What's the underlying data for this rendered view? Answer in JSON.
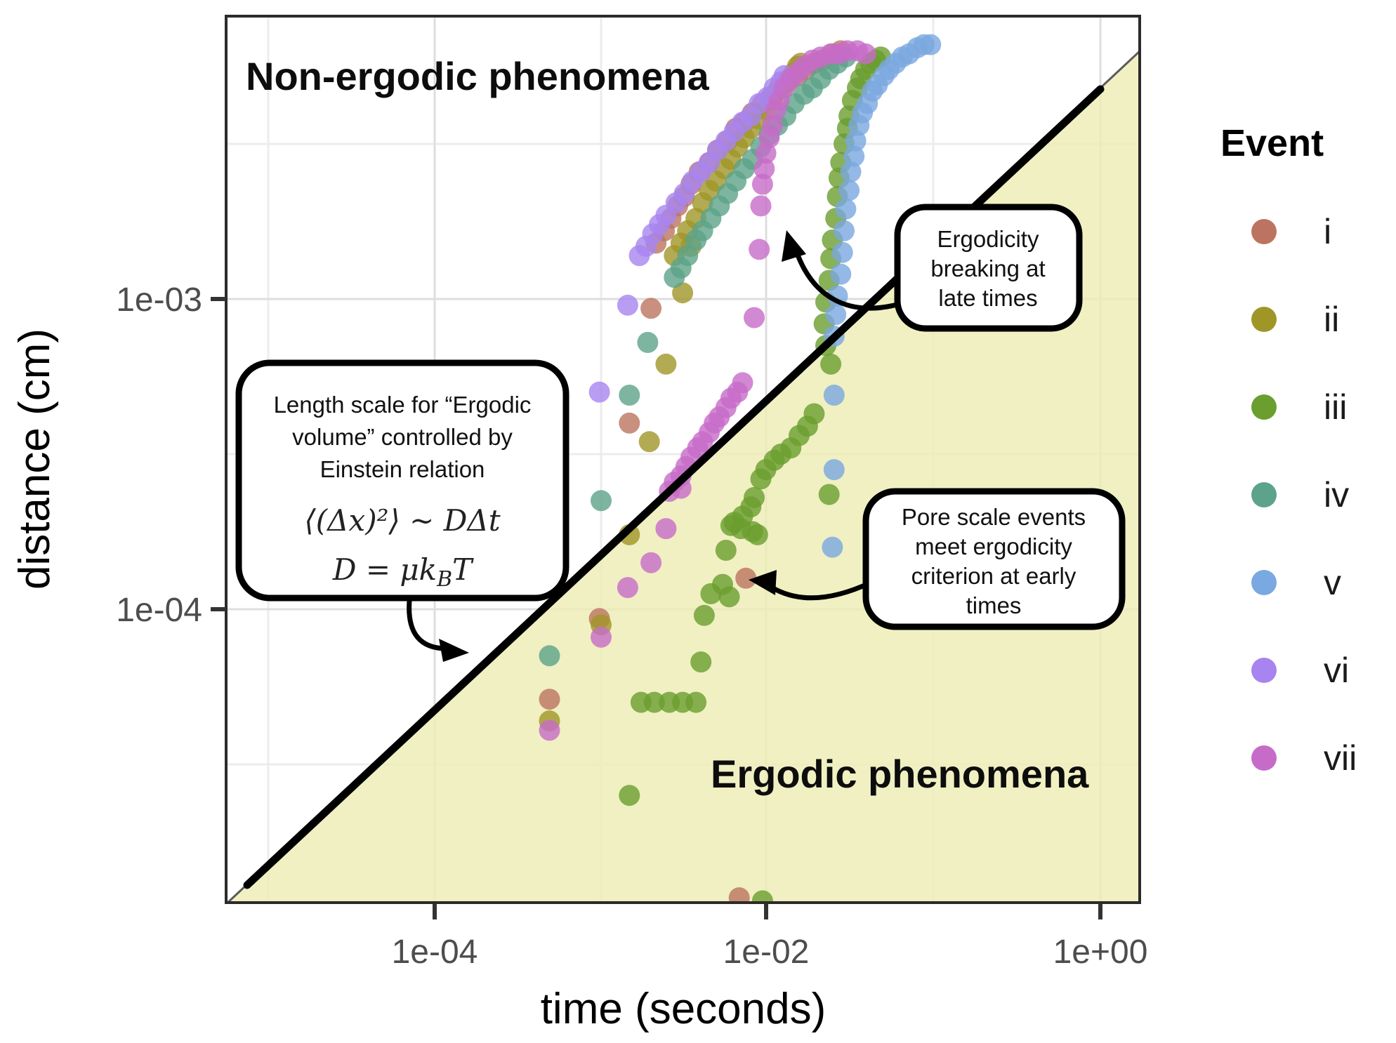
{
  "axes": {
    "x": {
      "label": "time (seconds)",
      "scale": "log10",
      "tick_labels": [
        "1e-04",
        "1e-02",
        "1e+00"
      ],
      "tick_values": [
        0.0001,
        0.01,
        1.0
      ],
      "range_log10": [
        -5.25,
        0.24
      ]
    },
    "y": {
      "label": "distance (cm)",
      "scale": "log10",
      "tick_labels": [
        "1e-03",
        "1e-04"
      ],
      "tick_values": [
        0.001,
        0.0001
      ],
      "range_log10": [
        -2.09,
        -4.95
      ]
    }
  },
  "regions": {
    "upper_label": "Non-ergodic phenomena",
    "lower_label": "Ergodic phenomena",
    "lower_fill": "#ededb4"
  },
  "legend": {
    "title": "Event"
  },
  "annotations": {
    "einstein_box": {
      "lines": [
        "Length scale for “Ergodic",
        "volume” controlled by",
        "Einstein relation"
      ],
      "math1": "⟨(Δx)²⟩ ~ DΔt",
      "math2_pre": "D = μk",
      "math2_sub": "B",
      "math2_post": "T"
    },
    "ergodicity_box": {
      "lines": [
        "Ergodicity",
        "breaking at",
        "late times"
      ]
    },
    "pore_box": {
      "lines": [
        "Pore scale events",
        "meet ergodicity",
        "criterion at early",
        "times"
      ]
    }
  },
  "chart_data": {
    "type": "scatter",
    "scale": "log-log",
    "xlabel": "time (seconds)",
    "ylabel": "distance (cm)",
    "x_range": [
      5.6e-06,
      1.7
    ],
    "y_range": [
      1.1e-05,
      0.0082
    ],
    "boundary_line": {
      "description": "ergodicity criterion, distance ~ sqrt(D * t), log-log slope 0.5",
      "log_slope": 0.5,
      "log_intercept_at_t1s": -2.32,
      "endpoints_log10": [
        [
          -5.25,
          -4.95
        ],
        [
          0.24,
          -2.21
        ]
      ]
    },
    "series": [
      {
        "name": "i",
        "color": "#bc7460",
        "points_log10": [
          [
            -2.67,
            -2.82
          ],
          [
            -2.62,
            -2.78
          ],
          [
            -2.58,
            -2.74
          ],
          [
            -2.54,
            -2.7
          ],
          [
            -2.5,
            -2.67
          ],
          [
            -2.46,
            -2.63
          ],
          [
            -2.41,
            -2.59
          ],
          [
            -2.35,
            -2.56
          ],
          [
            -2.3,
            -2.52
          ],
          [
            -2.24,
            -2.49
          ],
          [
            -2.19,
            -2.45
          ],
          [
            -2.14,
            -2.43
          ],
          [
            -2.09,
            -2.4
          ],
          [
            -2.03,
            -2.37
          ],
          [
            -1.98,
            -2.35
          ],
          [
            -1.93,
            -2.32
          ],
          [
            -1.88,
            -2.3
          ],
          [
            -1.82,
            -2.28
          ],
          [
            -1.77,
            -2.26
          ],
          [
            -1.72,
            -2.24
          ],
          [
            -1.67,
            -2.23
          ],
          [
            -1.61,
            -2.21
          ],
          [
            -1.56,
            -2.2
          ],
          [
            -2.7,
            -3.03
          ],
          [
            -2.83,
            -3.4
          ],
          [
            -3.01,
            -4.03
          ],
          [
            -3.31,
            -4.29
          ],
          [
            -2.13,
            -3.9
          ],
          [
            -2.17,
            -4.93
          ]
        ]
      },
      {
        "name": "ii",
        "color": "#a09628",
        "points_log10": [
          [
            -2.56,
            -2.86
          ],
          [
            -2.52,
            -2.82
          ],
          [
            -2.48,
            -2.78
          ],
          [
            -2.43,
            -2.74
          ],
          [
            -2.39,
            -2.69
          ],
          [
            -2.35,
            -2.65
          ],
          [
            -2.31,
            -2.62
          ],
          [
            -2.26,
            -2.58
          ],
          [
            -2.22,
            -2.55
          ],
          [
            -2.18,
            -2.51
          ],
          [
            -2.14,
            -2.48
          ],
          [
            -2.1,
            -2.45
          ],
          [
            -2.05,
            -2.42
          ],
          [
            -2.01,
            -2.39
          ],
          [
            -1.97,
            -2.36
          ],
          [
            -1.94,
            -2.33
          ],
          [
            -1.9,
            -2.31
          ],
          [
            -1.87,
            -2.29
          ],
          [
            -1.84,
            -2.27
          ],
          [
            -1.82,
            -2.25
          ],
          [
            -1.8,
            -2.24
          ],
          [
            -2.46,
            -2.83
          ],
          [
            -2.51,
            -2.98
          ],
          [
            -2.61,
            -3.21
          ],
          [
            -2.71,
            -3.46
          ],
          [
            -2.83,
            -3.76
          ],
          [
            -3.0,
            -4.05
          ],
          [
            -3.31,
            -4.36
          ]
        ]
      },
      {
        "name": "iii",
        "color": "#6a9e2e",
        "points_log10": [
          [
            -1.63,
            -2.94
          ],
          [
            -1.62,
            -2.87
          ],
          [
            -1.61,
            -2.81
          ],
          [
            -1.59,
            -2.74
          ],
          [
            -1.58,
            -2.67
          ],
          [
            -1.57,
            -2.61
          ],
          [
            -1.56,
            -2.56
          ],
          [
            -1.54,
            -2.5
          ],
          [
            -1.52,
            -2.45
          ],
          [
            -1.51,
            -2.41
          ],
          [
            -1.49,
            -2.36
          ],
          [
            -1.46,
            -2.32
          ],
          [
            -1.44,
            -2.29
          ],
          [
            -1.41,
            -2.26
          ],
          [
            -1.38,
            -2.24
          ],
          [
            -1.35,
            -2.23
          ],
          [
            -1.32,
            -2.22
          ],
          [
            -1.65,
            -3.01
          ],
          [
            -1.66,
            -3.08
          ],
          [
            -1.65,
            -3.15
          ],
          [
            -1.62,
            -3.21
          ],
          [
            -1.72,
            -3.37
          ],
          [
            -1.76,
            -3.41
          ],
          [
            -1.81,
            -3.44
          ],
          [
            -1.86,
            -3.48
          ],
          [
            -1.92,
            -3.5
          ],
          [
            -1.96,
            -3.52
          ],
          [
            -2.01,
            -3.55
          ],
          [
            -2.04,
            -3.58
          ],
          [
            -2.08,
            -3.64
          ],
          [
            -2.1,
            -3.67
          ],
          [
            -2.15,
            -3.7
          ],
          [
            -2.2,
            -3.72
          ],
          [
            -2.22,
            -3.73
          ],
          [
            -2.16,
            -3.74
          ],
          [
            -2.09,
            -3.75
          ],
          [
            -2.06,
            -3.76
          ],
          [
            -2.25,
            -3.81
          ],
          [
            -2.27,
            -3.92
          ],
          [
            -2.23,
            -3.96
          ],
          [
            -1.63,
            -3.63
          ],
          [
            -2.76,
            -4.3
          ],
          [
            -2.68,
            -4.3
          ],
          [
            -2.59,
            -4.3
          ],
          [
            -2.51,
            -4.3
          ],
          [
            -2.43,
            -4.3
          ],
          [
            -2.4,
            -4.17
          ],
          [
            -2.38,
            -4.02
          ],
          [
            -2.34,
            -3.95
          ],
          [
            -2.83,
            -4.6
          ],
          [
            -2.03,
            -4.94
          ]
        ]
      },
      {
        "name": "iv",
        "color": "#5da28a",
        "points_log10": [
          [
            -2.56,
            -2.93
          ],
          [
            -2.52,
            -2.9
          ],
          [
            -2.48,
            -2.86
          ],
          [
            -2.43,
            -2.81
          ],
          [
            -2.39,
            -2.78
          ],
          [
            -2.34,
            -2.74
          ],
          [
            -2.29,
            -2.7
          ],
          [
            -2.24,
            -2.66
          ],
          [
            -2.19,
            -2.62
          ],
          [
            -2.14,
            -2.58
          ],
          [
            -2.09,
            -2.55
          ],
          [
            -2.04,
            -2.51
          ],
          [
            -1.99,
            -2.47
          ],
          [
            -1.94,
            -2.44
          ],
          [
            -1.89,
            -2.41
          ],
          [
            -1.84,
            -2.37
          ],
          [
            -1.78,
            -2.34
          ],
          [
            -1.73,
            -2.32
          ],
          [
            -1.68,
            -2.29
          ],
          [
            -1.63,
            -2.26
          ],
          [
            -1.58,
            -2.24
          ],
          [
            -1.53,
            -2.22
          ],
          [
            -2.72,
            -3.14
          ],
          [
            -2.83,
            -3.31
          ],
          [
            -3.0,
            -3.65
          ],
          [
            -3.31,
            -4.15
          ]
        ]
      },
      {
        "name": "v",
        "color": "#7aa8e0",
        "points_log10": [
          [
            -1.58,
            -2.99
          ],
          [
            -1.56,
            -2.92
          ],
          [
            -1.55,
            -2.85
          ],
          [
            -1.54,
            -2.78
          ],
          [
            -1.53,
            -2.71
          ],
          [
            -1.51,
            -2.65
          ],
          [
            -1.5,
            -2.59
          ],
          [
            -1.48,
            -2.54
          ],
          [
            -1.47,
            -2.49
          ],
          [
            -1.45,
            -2.44
          ],
          [
            -1.43,
            -2.4
          ],
          [
            -1.4,
            -2.37
          ],
          [
            -1.37,
            -2.33
          ],
          [
            -1.34,
            -2.31
          ],
          [
            -1.3,
            -2.28
          ],
          [
            -1.27,
            -2.26
          ],
          [
            -1.23,
            -2.24
          ],
          [
            -1.19,
            -2.22
          ],
          [
            -1.15,
            -2.21
          ],
          [
            -1.1,
            -2.19
          ],
          [
            -1.06,
            -2.18
          ],
          [
            -1.02,
            -2.18
          ],
          [
            -1.59,
            -3.05
          ],
          [
            -1.6,
            -3.12
          ],
          [
            -1.6,
            -3.31
          ],
          [
            -1.6,
            -3.55
          ],
          [
            -1.61,
            -3.8
          ]
        ]
      },
      {
        "name": "vi",
        "color": "#a784f0",
        "points_log10": [
          [
            -2.77,
            -2.86
          ],
          [
            -2.73,
            -2.83
          ],
          [
            -2.69,
            -2.79
          ],
          [
            -2.65,
            -2.76
          ],
          [
            -2.61,
            -2.73
          ],
          [
            -2.55,
            -2.69
          ],
          [
            -2.5,
            -2.66
          ],
          [
            -2.45,
            -2.62
          ],
          [
            -2.4,
            -2.59
          ],
          [
            -2.35,
            -2.56
          ],
          [
            -2.3,
            -2.52
          ],
          [
            -2.25,
            -2.49
          ],
          [
            -2.2,
            -2.46
          ],
          [
            -2.15,
            -2.43
          ],
          [
            -2.1,
            -2.41
          ],
          [
            -2.05,
            -2.37
          ],
          [
            -2.0,
            -2.35
          ],
          [
            -1.96,
            -2.32
          ],
          [
            -1.92,
            -2.3
          ],
          [
            -1.9,
            -2.28
          ],
          [
            -2.84,
            -3.02
          ],
          [
            -3.01,
            -3.3
          ]
        ]
      },
      {
        "name": "vii",
        "color": "#c76bc8",
        "points_log10": [
          [
            -2.59,
            -3.62
          ],
          [
            -2.56,
            -3.59
          ],
          [
            -2.52,
            -3.57
          ],
          [
            -2.49,
            -3.54
          ],
          [
            -2.46,
            -3.51
          ],
          [
            -2.42,
            -3.48
          ],
          [
            -2.39,
            -3.46
          ],
          [
            -2.35,
            -3.43
          ],
          [
            -2.32,
            -3.4
          ],
          [
            -2.29,
            -3.38
          ],
          [
            -2.25,
            -3.35
          ],
          [
            -2.22,
            -3.32
          ],
          [
            -2.18,
            -3.3
          ],
          [
            -2.15,
            -3.27
          ],
          [
            -2.08,
            -3.06
          ],
          [
            -2.05,
            -2.84
          ],
          [
            -2.04,
            -2.7
          ],
          [
            -2.03,
            -2.63
          ],
          [
            -2.02,
            -2.58
          ],
          [
            -2.01,
            -2.53
          ],
          [
            -1.99,
            -2.48
          ],
          [
            -1.97,
            -2.44
          ],
          [
            -1.95,
            -2.39
          ],
          [
            -1.93,
            -2.36
          ],
          [
            -1.9,
            -2.32
          ],
          [
            -1.86,
            -2.29
          ],
          [
            -1.82,
            -2.27
          ],
          [
            -1.78,
            -2.25
          ],
          [
            -1.73,
            -2.23
          ],
          [
            -1.68,
            -2.22
          ],
          [
            -1.62,
            -2.21
          ],
          [
            -1.57,
            -2.21
          ],
          [
            -1.52,
            -2.2
          ],
          [
            -1.46,
            -2.2
          ],
          [
            -1.41,
            -2.21
          ],
          [
            -2.52,
            -3.61
          ],
          [
            -2.61,
            -3.74
          ],
          [
            -2.7,
            -3.85
          ],
          [
            -2.84,
            -3.93
          ],
          [
            -3.0,
            -4.09
          ],
          [
            -3.31,
            -4.39
          ]
        ]
      }
    ]
  }
}
